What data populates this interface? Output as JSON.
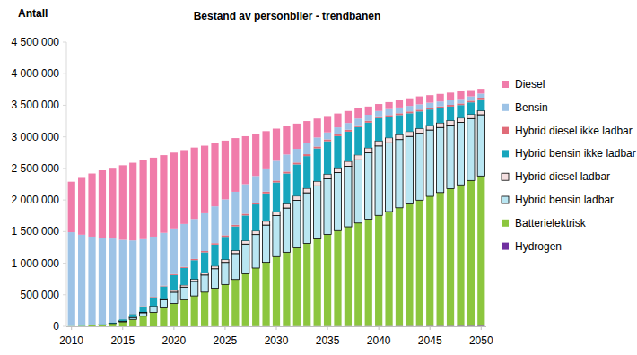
{
  "chart_data": {
    "type": "bar",
    "title": "Bestand av personbiler - trendbanen",
    "y_label": "Antall",
    "stacked": true,
    "grid": false,
    "legend": "right",
    "categories": [
      "2010",
      null,
      null,
      null,
      null,
      "2015",
      null,
      null,
      null,
      null,
      "2020",
      null,
      null,
      null,
      null,
      "2025",
      null,
      null,
      null,
      null,
      "2030",
      null,
      null,
      null,
      null,
      "2035",
      null,
      null,
      null,
      null,
      "2040",
      null,
      null,
      null,
      null,
      "2045",
      null,
      null,
      null,
      null,
      "2050"
    ],
    "ylim": [
      0,
      4500000
    ],
    "yticks": [
      0,
      {
        "value": 500000,
        "label": "500 000"
      },
      {
        "value": 1000000,
        "label": "1 000 000"
      },
      {
        "value": 1500000,
        "label": "1 500 000"
      },
      {
        "value": 2000000,
        "label": "2 000 000"
      },
      {
        "value": 2500000,
        "label": "2 500 000"
      },
      {
        "value": 3000000,
        "label": "3 000 000"
      },
      {
        "value": 3500000,
        "label": "3 500 000"
      },
      {
        "value": 4000000,
        "label": "4 000 000"
      },
      {
        "value": 4500000,
        "label": "4 500 000"
      }
    ],
    "series": [
      {
        "name": "Diesel",
        "color": "#f07caa",
        "values": [
          800000,
          900000,
          1000000,
          1070000,
          1120000,
          1180000,
          1230000,
          1250000,
          1250000,
          1230000,
          1200000,
          1170000,
          1130000,
          1070000,
          1000000,
          930000,
          850000,
          760000,
          670000,
          590000,
          510000,
          450000,
          400000,
          350000,
          300000,
          260000,
          220000,
          190000,
          160000,
          130000,
          110000,
          110000,
          115000,
          120000,
          125000,
          120000,
          120000,
          120000,
          120000,
          100000,
          75000
        ]
      },
      {
        "name": "Bensin",
        "color": "#9dc3e6",
        "values": [
          1483000,
          1438000,
          1399000,
          1365000,
          1325000,
          1256000,
          1161000,
          1059000,
          951000,
          836000,
          724000,
          679000,
          634000,
          598000,
          583000,
          568000,
          523000,
          468000,
          422000,
          367000,
          312000,
          270000,
          217000,
          175000,
          143000,
          110000,
          109000,
          108000,
          106000,
          95000,
          84000,
          95000,
          91000,
          87000,
          84000,
          79000,
          77000,
          74000,
          71000,
          68000,
          65000
        ]
      },
      {
        "name": "Hybrid diesel ikke ladbar",
        "color": "#e06b78",
        "values": [
          0,
          0,
          0,
          0,
          1000,
          2000,
          4000,
          6000,
          9000,
          12000,
          15000,
          17000,
          19000,
          21000,
          23000,
          25000,
          26000,
          27000,
          28000,
          29000,
          30000,
          30000,
          30000,
          30000,
          30000,
          30000,
          30000,
          30000,
          30000,
          30000,
          30000,
          30000,
          29000,
          29000,
          28000,
          28000,
          27000,
          27000,
          26000,
          26000,
          25000
        ]
      },
      {
        "name": "Hybrid bensin ikke ladbar",
        "color": "#17a6bd",
        "values": [
          2000,
          4000,
          6000,
          9000,
          14000,
          25000,
          50000,
          90000,
          140000,
          190000,
          240000,
          270000,
          300000,
          320000,
          340000,
          360000,
          380000,
          400000,
          420000,
          440000,
          460000,
          480000,
          500000,
          510000,
          520000,
          520000,
          500000,
          470000,
          440000,
          400000,
          360000,
          330000,
          310000,
          290000,
          270000,
          250000,
          235000,
          220000,
          205000,
          190000,
          180000
        ]
      },
      {
        "name": "Hybrid diesel ladbar",
        "color": "#f4dfe0",
        "values": [
          0,
          0,
          0,
          0,
          0,
          2000,
          5000,
          10000,
          15000,
          22000,
          30000,
          33000,
          36000,
          39000,
          42000,
          45000,
          49000,
          53000,
          57000,
          61000,
          65000,
          67000,
          69000,
          71000,
          73000,
          75000,
          76000,
          77000,
          78000,
          79000,
          80000,
          79000,
          78000,
          77000,
          76000,
          75000,
          73000,
          71000,
          69000,
          67000,
          65000
        ]
      },
      {
        "name": "Hybrid bensin ladbar",
        "color": "#b9e6f2",
        "values": [
          0,
          0,
          0,
          1000,
          5000,
          15000,
          30000,
          55000,
          85000,
          130000,
          180000,
          200000,
          230000,
          270000,
          310000,
          350000,
          410000,
          470000,
          530000,
          590000,
          650000,
          700000,
          750000,
          800000,
          840000,
          880000,
          920000,
          960000,
          1000000,
          1050000,
          1100000,
          1090000,
          1080000,
          1070000,
          1060000,
          1050000,
          1030000,
          1010000,
          990000,
          980000,
          970000
        ]
      },
      {
        "name": "Batterielektrisk",
        "color": "#8cc63e",
        "values": [
          5000,
          8000,
          15000,
          25000,
          45000,
          70000,
          110000,
          160000,
          220000,
          290000,
          360000,
          420000,
          480000,
          540000,
          600000,
          660000,
          740000,
          830000,
          920000,
          1010000,
          1100000,
          1170000,
          1240000,
          1310000,
          1380000,
          1450000,
          1510000,
          1570000,
          1630000,
          1690000,
          1750000,
          1810000,
          1870000,
          1930000,
          1990000,
          2050000,
          2110000,
          2170000,
          2230000,
          2300000,
          2370000
        ]
      },
      {
        "name": "Hydrogen",
        "color": "#7030a0",
        "values": [
          0,
          0,
          0,
          0,
          0,
          0,
          0,
          0,
          0,
          0,
          1000,
          1000,
          1000,
          2000,
          2000,
          2000,
          2000,
          2000,
          3000,
          3000,
          3000,
          3000,
          4000,
          4000,
          4000,
          5000,
          5000,
          5000,
          6000,
          6000,
          6000,
          6000,
          7000,
          7000,
          7000,
          8000,
          8000,
          8000,
          9000,
          9000,
          10000
        ]
      }
    ]
  }
}
